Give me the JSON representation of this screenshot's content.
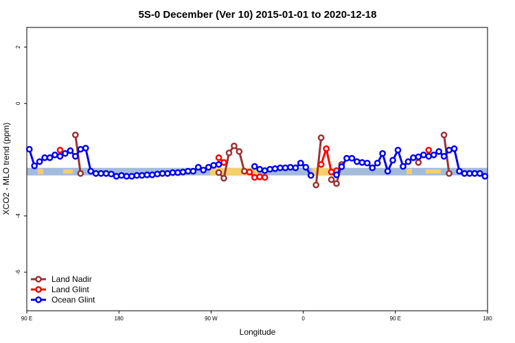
{
  "chart_data": {
    "type": "line",
    "title": "5S-0 December (Ver 10)   2015-01-01 to 2020-12-18",
    "x_label": "Longitude",
    "y_label": "XCO2 - MLO trend (ppm)",
    "xlim": [
      90,
      540
    ],
    "xticks": [
      {
        "value": 90,
        "label": "90 E"
      },
      {
        "value": 180,
        "label": "180"
      },
      {
        "value": 270,
        "label": "90 W"
      },
      {
        "value": 360,
        "label": "0"
      },
      {
        "value": 450,
        "label": "90 E"
      },
      {
        "value": 540,
        "label": "180"
      }
    ],
    "ylim": [
      -7.37,
      2.7
    ],
    "yticks": [
      -6,
      -4,
      0,
      2
    ],
    "band": [
      -2.56,
      -2.29
    ],
    "band_color": "#a3bcdc",
    "legend": "bottom-left",
    "series": [
      {
        "name": "Land Nadir",
        "color": "#993333",
        "x": [
          137.5,
          142.5,
          null,
          277.5,
          282.5,
          287.5,
          292.5,
          297.5,
          302.5,
          null,
          372.5,
          377.5,
          null,
          387.5,
          392.5,
          397.5,
          null,
          472.5,
          null,
          497.5,
          502.5
        ],
        "values": [
          -1.12,
          -2.49,
          null,
          -2.46,
          -2.66,
          -1.76,
          -1.51,
          -1.71,
          -2.41,
          null,
          -2.9,
          -1.22,
          null,
          -2.71,
          -2.85,
          -2.17,
          null,
          -2.1,
          null,
          -1.12,
          -2.49
        ]
      },
      {
        "name": "Land Glint",
        "color": "#ff0000",
        "x": [
          122.5,
          null,
          277.5,
          282.5,
          null,
          307.5,
          312.5,
          317.5,
          322.5,
          null,
          377.5,
          382.5,
          387.5,
          392.5,
          null,
          482.5
        ],
        "values": [
          -1.66,
          null,
          -1.93,
          -2.1,
          null,
          -2.44,
          -2.63,
          -2.61,
          -2.63,
          null,
          -2.17,
          -1.61,
          -2.44,
          -2.39,
          null,
          -1.66
        ]
      },
      {
        "name": "Ocean Glint",
        "color": "#0000ee",
        "x": [
          92.5,
          97.5,
          102.5,
          107.5,
          112.5,
          117.5,
          122.5,
          127.5,
          132.5,
          137.5,
          142.5,
          147.5,
          152.5,
          157.5,
          162.5,
          167.5,
          172.5,
          177.5,
          182.5,
          187.5,
          192.5,
          197.5,
          202.5,
          207.5,
          212.5,
          217.5,
          222.5,
          227.5,
          232.5,
          237.5,
          242.5,
          247.5,
          252.5,
          257.5,
          262.5,
          267.5,
          272.5,
          277.5,
          null,
          312.5,
          317.5,
          322.5,
          327.5,
          332.5,
          337.5,
          342.5,
          347.5,
          352.5,
          357.5,
          362.5,
          367.5,
          null,
          392.5,
          397.5,
          402.5,
          407.5,
          412.5,
          417.5,
          422.5,
          427.5,
          432.5,
          437.5,
          442.5,
          447.5,
          452.5,
          457.5,
          462.5,
          467.5,
          472.5,
          477.5,
          482.5,
          487.5,
          492.5,
          497.5,
          502.5,
          507.5,
          512.5,
          517.5,
          522.5,
          527.5,
          532.5,
          537.5
        ],
        "values": [
          -1.63,
          -2.22,
          -2.07,
          -1.93,
          -1.93,
          -1.83,
          -1.88,
          -1.78,
          -1.68,
          -1.88,
          -1.63,
          -1.59,
          -2.41,
          -2.49,
          -2.49,
          -2.49,
          -2.51,
          -2.59,
          -2.56,
          -2.59,
          -2.59,
          -2.56,
          -2.56,
          -2.54,
          -2.54,
          -2.51,
          -2.49,
          -2.49,
          -2.46,
          -2.46,
          -2.44,
          -2.41,
          -2.41,
          -2.27,
          -2.37,
          -2.27,
          -2.2,
          -2.17,
          null,
          -2.24,
          -2.34,
          -2.39,
          -2.34,
          -2.32,
          -2.29,
          -2.29,
          -2.27,
          -2.29,
          -2.12,
          -2.27,
          -2.56,
          null,
          -2.54,
          -2.25,
          -1.95,
          -1.95,
          -2.07,
          -2.1,
          -2.12,
          -2.29,
          -2.12,
          -1.78,
          -2.41,
          -2.02,
          -1.66,
          -2.24,
          -2.07,
          -1.93,
          -1.9,
          -1.83,
          -1.88,
          -1.83,
          -1.71,
          -1.88,
          -1.66,
          -1.61,
          -2.41,
          -2.49,
          -2.49,
          -2.49,
          -2.49,
          -2.59
        ]
      }
    ]
  }
}
